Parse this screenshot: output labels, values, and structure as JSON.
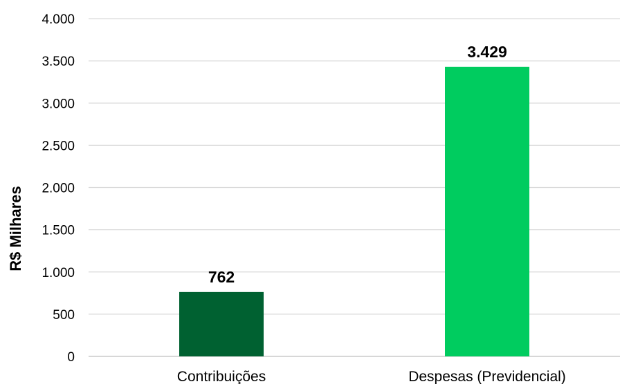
{
  "chart_data": {
    "type": "bar",
    "ylabel": "R$ Milhares",
    "ylim": [
      0,
      4000
    ],
    "yticks": [
      0,
      500,
      1000,
      1500,
      2000,
      2500,
      3000,
      3500,
      4000
    ],
    "ytick_labels": [
      "0",
      "500",
      "1.000",
      "1.500",
      "2.000",
      "2.500",
      "3.000",
      "3.500",
      "4.000"
    ],
    "categories": [
      "Contribuições",
      "Despesas (Previdencial)"
    ],
    "values": [
      762,
      3429
    ],
    "data_labels": [
      "762",
      "3.429"
    ],
    "colors": [
      "#006131",
      "#00cc5f"
    ],
    "grid": true,
    "legend": "none"
  }
}
